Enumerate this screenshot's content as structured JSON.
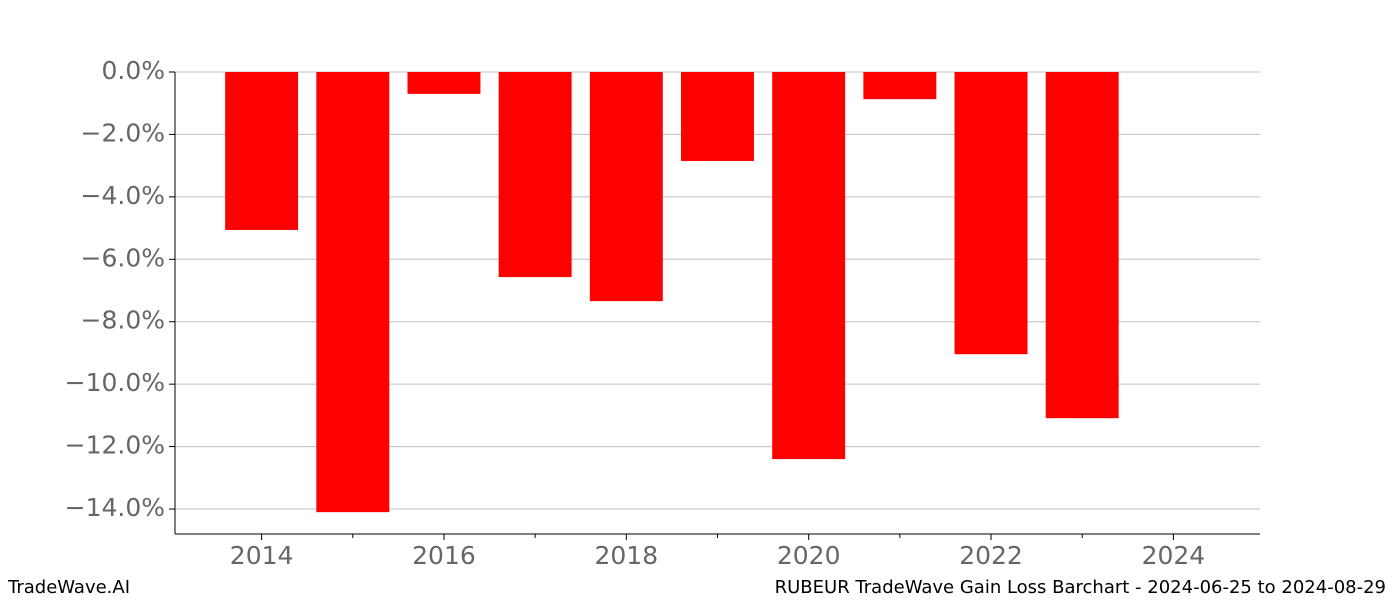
{
  "chart_data": {
    "type": "bar",
    "title": "RUBEUR TradeWave Gain Loss Barchart - 2024-06-25 to 2024-08-29",
    "watermark": "TradeWave.AI",
    "x": [
      2014,
      2015,
      2016,
      2017,
      2018,
      2019,
      2020,
      2021,
      2022,
      2023
    ],
    "values": [
      -5.06,
      -14.1,
      -0.7,
      -6.57,
      -7.34,
      -2.85,
      -12.4,
      -0.87,
      -9.04,
      -11.09
    ],
    "bar_width": 0.8,
    "color": "#ff0000",
    "xlim": [
      2013.05,
      2024.95
    ],
    "xticks": [
      2014,
      2016,
      2018,
      2020,
      2022,
      2024
    ],
    "xminor_ticks": [
      2015,
      2017,
      2019,
      2021,
      2023
    ],
    "ylim": [
      -14.8,
      0
    ],
    "yticks": [
      {
        "value": 0,
        "label": "0.0%"
      },
      {
        "value": -2,
        "label": "−2.0%"
      },
      {
        "value": -4,
        "label": "−4.0%"
      },
      {
        "value": -6,
        "label": "−6.0%"
      },
      {
        "value": -8,
        "label": "−8.0%"
      },
      {
        "value": -10,
        "label": "−10.0%"
      },
      {
        "value": -12,
        "label": "−12.0%"
      },
      {
        "value": -14,
        "label": "−14.0%"
      }
    ],
    "grid": true
  }
}
